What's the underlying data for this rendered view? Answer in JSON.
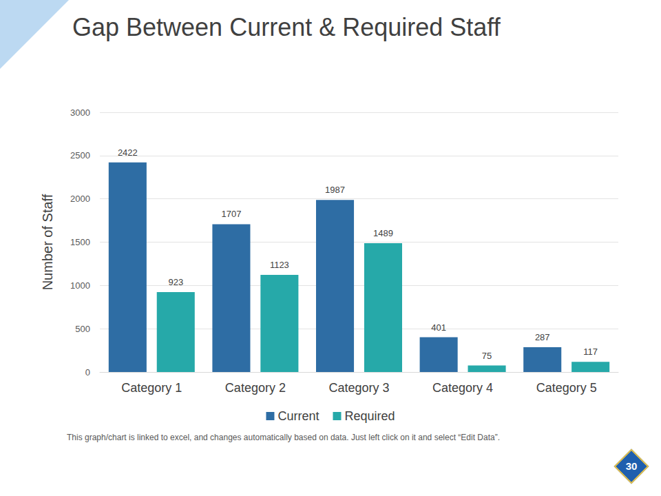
{
  "chart_data": {
    "type": "bar",
    "title": "Gap Between Current & Required Staff",
    "ylabel": "Number of Staff",
    "categories": [
      "Category 1",
      "Category 2",
      "Category 3",
      "Category 4",
      "Category 5"
    ],
    "series": [
      {
        "name": "Current",
        "color": "#2e6da4",
        "values": [
          2422,
          1707,
          1987,
          401,
          287
        ]
      },
      {
        "name": "Required",
        "color": "#26a9a9",
        "values": [
          923,
          1123,
          1489,
          75,
          117
        ]
      }
    ],
    "ylim": [
      0,
      3000
    ],
    "yticks": [
      0,
      500,
      1000,
      1500,
      2000,
      2500,
      3000
    ],
    "grid": true,
    "legend": "bottom",
    "data_labels": true
  },
  "footnote": "This graph/chart is linked to excel, and changes automatically based on data. Just left click on it and select “Edit Data”.",
  "page_number": "30"
}
